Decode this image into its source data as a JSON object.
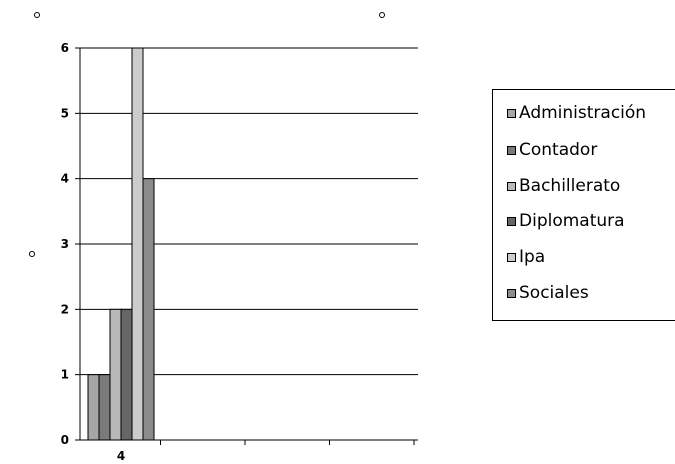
{
  "chart_data": {
    "type": "bar",
    "categories": [
      "4"
    ],
    "series": [
      {
        "name": "Administración",
        "values": [
          1
        ],
        "color": "#a6a6a6"
      },
      {
        "name": "Contador",
        "values": [
          1
        ],
        "color": "#7a7a7a"
      },
      {
        "name": "Bachillerato",
        "values": [
          2
        ],
        "color": "#b8b8b8"
      },
      {
        "name": "Diplomatura",
        "values": [
          2
        ],
        "color": "#666666"
      },
      {
        "name": "Ipa",
        "values": [
          6
        ],
        "color": "#cccccc"
      },
      {
        "name": "Sociales",
        "values": [
          4
        ],
        "color": "#8c8c8c"
      }
    ],
    "yticks": [
      "0",
      "1",
      "2",
      "3",
      "4",
      "5",
      "6"
    ],
    "ylim": [
      0,
      6
    ],
    "grid": true,
    "legend": "right",
    "title": "",
    "xlabel": "",
    "ylabel": ""
  }
}
